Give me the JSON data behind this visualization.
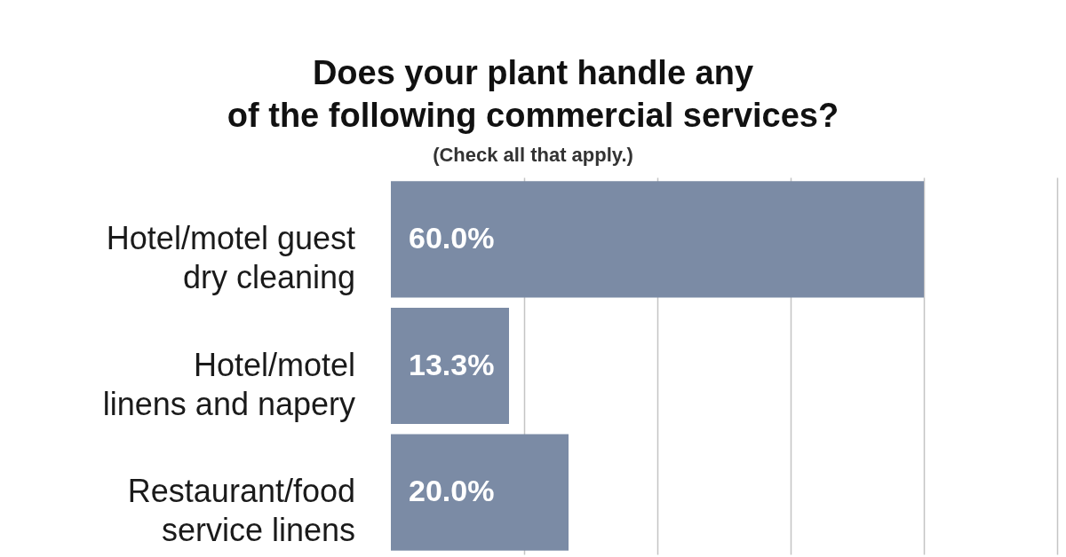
{
  "chart_data": {
    "type": "bar",
    "title": "Does your plant handle any of the following commercial services?",
    "subtitle": "(Check all that apply.)",
    "orientation": "horizontal",
    "categories": [
      "Hotel/motel guest dry cleaning",
      "Hotel/motel linens and napery",
      "Restaurant/food service linens"
    ],
    "values": [
      60.0,
      13.3,
      20.0
    ],
    "value_labels": [
      "60.0%",
      "13.3%",
      "20.0%"
    ],
    "color": "#7b8ba5",
    "xlim": [
      0,
      75
    ],
    "xticks": [
      {
        "value": 15,
        "label": null
      },
      {
        "value": 30,
        "label": null
      },
      {
        "value": 45,
        "label": null
      },
      {
        "value": 60,
        "label": null
      },
      {
        "value": 75,
        "label": null
      }
    ],
    "grid": "x",
    "tick_labels": "y"
  }
}
